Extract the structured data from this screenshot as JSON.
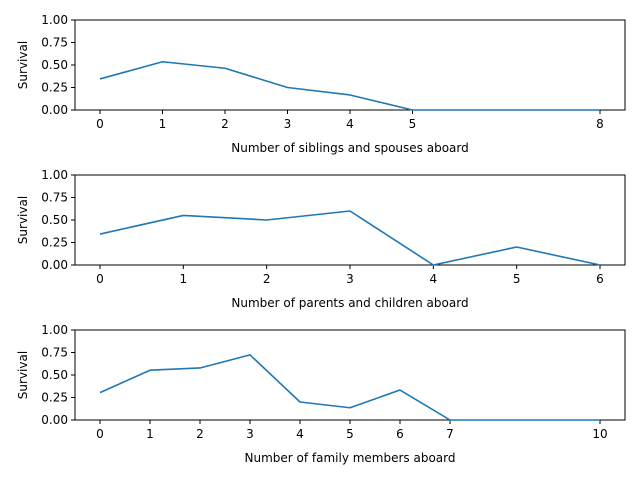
{
  "chart_data": [
    {
      "type": "line",
      "x": [
        0,
        1,
        2,
        3,
        4,
        5,
        8
      ],
      "y": [
        0.345,
        0.536,
        0.464,
        0.25,
        0.167,
        0.0,
        0.0
      ],
      "xticks": [
        0,
        1,
        2,
        3,
        4,
        5,
        8
      ],
      "yticks": [
        0.0,
        0.25,
        0.5,
        0.75,
        1.0
      ],
      "ytick_labels": [
        "0.00",
        "0.25",
        "0.50",
        "0.75",
        "1.00"
      ],
      "xlim": [
        -0.4,
        8.4
      ],
      "ylim": [
        0,
        1
      ],
      "xlabel": "Number of siblings and spouses aboard",
      "ylabel": "Survival",
      "color": "#1f77b4"
    },
    {
      "type": "line",
      "x": [
        0,
        1,
        2,
        3,
        4,
        5,
        6
      ],
      "y": [
        0.344,
        0.551,
        0.5,
        0.6,
        0.0,
        0.2,
        0.0
      ],
      "xticks": [
        0,
        1,
        2,
        3,
        4,
        5,
        6
      ],
      "yticks": [
        0.0,
        0.25,
        0.5,
        0.75,
        1.0
      ],
      "ytick_labels": [
        "0.00",
        "0.25",
        "0.50",
        "0.75",
        "1.00"
      ],
      "xlim": [
        -0.3,
        6.3
      ],
      "ylim": [
        0,
        1
      ],
      "xlabel": "Number of parents and children aboard",
      "ylabel": "Survival",
      "color": "#1f77b4"
    },
    {
      "type": "line",
      "x": [
        0,
        1,
        2,
        3,
        4,
        5,
        6,
        7,
        10
      ],
      "y": [
        0.304,
        0.553,
        0.578,
        0.724,
        0.2,
        0.136,
        0.333,
        0.0,
        0.0
      ],
      "xticks": [
        0,
        1,
        2,
        3,
        4,
        5,
        6,
        7,
        10
      ],
      "yticks": [
        0.0,
        0.25,
        0.5,
        0.75,
        1.0
      ],
      "ytick_labels": [
        "0.00",
        "0.25",
        "0.50",
        "0.75",
        "1.00"
      ],
      "xlim": [
        -0.5,
        10.5
      ],
      "ylim": [
        0,
        1
      ],
      "xlabel": "Number of family members aboard",
      "ylabel": "Survival",
      "color": "#1f77b4"
    }
  ]
}
